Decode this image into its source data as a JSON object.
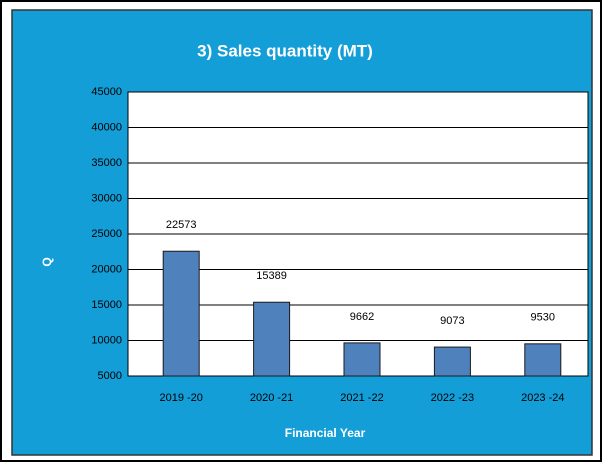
{
  "chart_data": {
    "type": "bar",
    "title": "3) Sales quantity (MT)",
    "x_label": "Financial Year",
    "y_label": "Q",
    "categories": [
      "2019 -20",
      "2020 -21",
      "2021 -22",
      "2022 -23",
      "2023 -24"
    ],
    "values": [
      22573,
      15389,
      9662,
      9073,
      9530
    ],
    "color": "#4f81bd",
    "ylim": [
      5000,
      45000
    ],
    "yticks": [
      5000,
      10000,
      15000,
      20000,
      25000,
      30000,
      35000,
      40000,
      45000
    ],
    "grid": true
  }
}
